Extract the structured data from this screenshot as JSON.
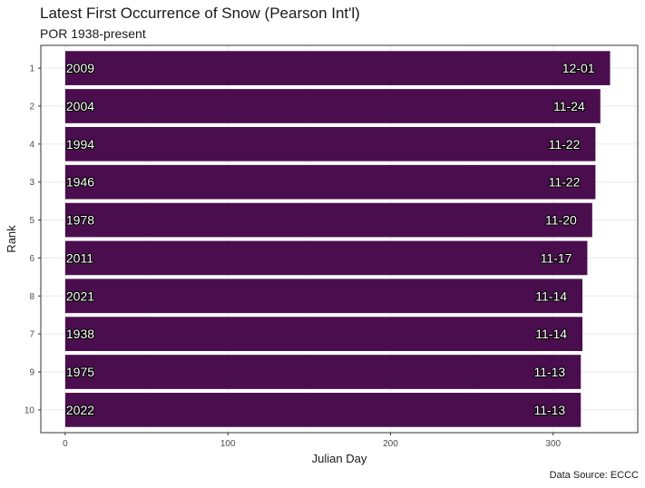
{
  "colors": {
    "bar_fill": "#4a0e4e",
    "grid": "#ebebeb",
    "panel_border": "#333333",
    "label_text": "#ffffff",
    "label_outline": "#000000"
  },
  "chart_data": {
    "type": "bar",
    "orientation": "horizontal",
    "title": "Latest First Occurrence of Snow (Pearson Int'l)",
    "subtitle": "POR 1938-present",
    "caption": "Data Source: ECCC",
    "xlabel": "Julian Day",
    "ylabel": "Rank",
    "xlim": [
      -15,
      352
    ],
    "x_ticks": [
      0,
      100,
      200,
      300
    ],
    "grid": true,
    "legend": "none",
    "bars": [
      {
        "rank": "1",
        "year": "2009",
        "date_label": "12-01",
        "julian_day": 335
      },
      {
        "rank": "2",
        "year": "2004",
        "date_label": "11-24",
        "julian_day": 329
      },
      {
        "rank": "4",
        "year": "1994",
        "date_label": "11-22",
        "julian_day": 326
      },
      {
        "rank": "3",
        "year": "1946",
        "date_label": "11-22",
        "julian_day": 326
      },
      {
        "rank": "5",
        "year": "1978",
        "date_label": "11-20",
        "julian_day": 324
      },
      {
        "rank": "6",
        "year": "2011",
        "date_label": "11-17",
        "julian_day": 321
      },
      {
        "rank": "8",
        "year": "2021",
        "date_label": "11-14",
        "julian_day": 318
      },
      {
        "rank": "7",
        "year": "1938",
        "date_label": "11-14",
        "julian_day": 318
      },
      {
        "rank": "9",
        "year": "1975",
        "date_label": "11-13",
        "julian_day": 317
      },
      {
        "rank": "10",
        "year": "2022",
        "date_label": "11-13",
        "julian_day": 317
      }
    ]
  }
}
